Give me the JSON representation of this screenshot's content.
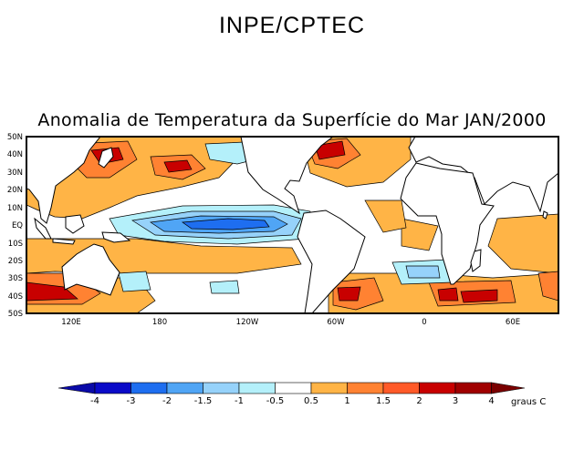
{
  "header": {
    "title": "INPE/CPTEC"
  },
  "map": {
    "title": "Anomalia de Temperatura da Superfície do Mar JAN/2000",
    "lat_labels": [
      "50N",
      "40N",
      "30N",
      "20N",
      "10N",
      "EQ",
      "10S",
      "20S",
      "30S",
      "40S",
      "50S"
    ],
    "lon_labels": [
      "120E",
      "180",
      "120W",
      "60W",
      "0",
      "60E"
    ],
    "lon_range": [
      90,
      450
    ],
    "lat_range": [
      -50,
      50
    ]
  },
  "legend": {
    "unit": "graus C",
    "ticks": [
      "-4",
      "-3",
      "-2",
      "-1.5",
      "-1",
      "-0.5",
      "0.5",
      "1",
      "1.5",
      "2",
      "3",
      "4"
    ],
    "colors": [
      "#0a0aa8",
      "#0a0ac8",
      "#1e6ef0",
      "#50a5f5",
      "#96d2fa",
      "#b4f0fa",
      "#ffffff",
      "#ffb446",
      "#ff8232",
      "#ff5a28",
      "#c80000",
      "#a00000",
      "#7a0000"
    ]
  }
}
